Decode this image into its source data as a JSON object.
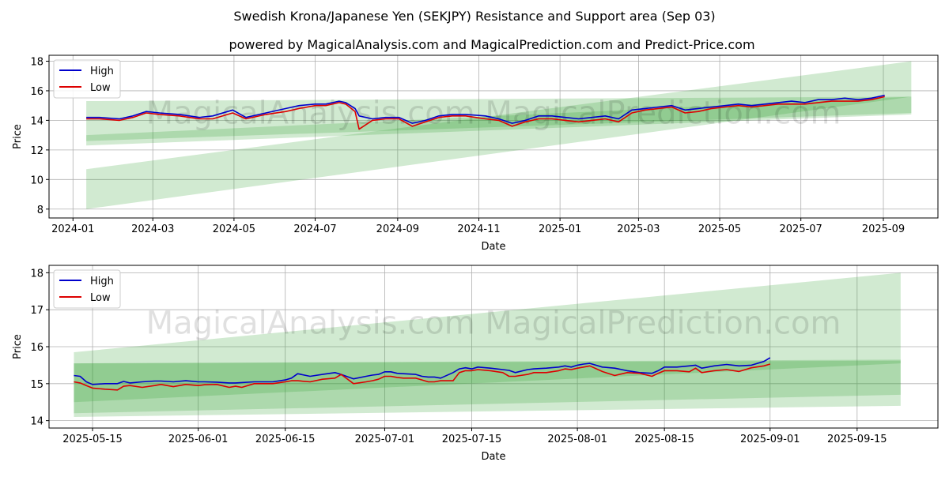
{
  "title": "Swedish Krona/Japanese Yen (SEKJPY) Resistance and Support area (Sep 03)",
  "subtitle": "powered by MagicalAnalysis.com and MagicalPrediction.com and Predict-Price.com",
  "watermark": "MagicalAnalysis.com    MagicalPrediction.com",
  "colors": {
    "high": "#0000cc",
    "low": "#dd0000",
    "band": "#2e9e2e",
    "grid": "#b0b0b0"
  },
  "chart_data": [
    {
      "type": "line",
      "name": "full-history",
      "xlabel": "Date",
      "ylabel": "Price",
      "x_tick_labels": [
        "2024-01",
        "2024-03",
        "2024-05",
        "2024-07",
        "2024-09",
        "2024-11",
        "2025-01",
        "2025-03",
        "2025-05",
        "2025-07",
        "2025-09"
      ],
      "x_tick_days": [
        0,
        60,
        121,
        182,
        244,
        305,
        366,
        425,
        486,
        547,
        609
      ],
      "xlim_days": [
        -18,
        650
      ],
      "ylim": [
        7.4,
        18.4
      ],
      "y_ticks": [
        8,
        10,
        12,
        14,
        16,
        18
      ],
      "legend": [
        "High",
        "Low"
      ],
      "legend_position": "upper-left",
      "series": [
        {
          "name": "High",
          "x_days": [
            10,
            20,
            35,
            45,
            55,
            65,
            80,
            95,
            105,
            120,
            130,
            145,
            160,
            170,
            182,
            190,
            200,
            205,
            212,
            215,
            225,
            235,
            245,
            255,
            265,
            275,
            285,
            295,
            310,
            320,
            330,
            340,
            350,
            360,
            370,
            380,
            390,
            400,
            410,
            420,
            430,
            440,
            450,
            460,
            470,
            480,
            490,
            500,
            510,
            520,
            530,
            540,
            550,
            560,
            570,
            580,
            590,
            600,
            610
          ],
          "values": [
            14.2,
            14.2,
            14.1,
            14.3,
            14.6,
            14.5,
            14.4,
            14.2,
            14.3,
            14.7,
            14.2,
            14.5,
            14.8,
            15.0,
            15.1,
            15.1,
            15.3,
            15.2,
            14.8,
            14.3,
            14.1,
            14.2,
            14.2,
            13.8,
            14.0,
            14.3,
            14.4,
            14.4,
            14.3,
            14.1,
            13.8,
            14.0,
            14.3,
            14.3,
            14.2,
            14.1,
            14.2,
            14.3,
            14.1,
            14.7,
            14.8,
            14.9,
            15.0,
            14.7,
            14.8,
            14.9,
            15.0,
            15.1,
            15.0,
            15.1,
            15.2,
            15.3,
            15.2,
            15.4,
            15.4,
            15.5,
            15.4,
            15.5,
            15.7
          ]
        },
        {
          "name": "Low",
          "x_days": [
            10,
            20,
            35,
            45,
            55,
            65,
            80,
            95,
            105,
            120,
            130,
            145,
            160,
            170,
            182,
            190,
            200,
            205,
            212,
            215,
            225,
            235,
            245,
            255,
            265,
            275,
            285,
            295,
            310,
            320,
            330,
            340,
            350,
            360,
            370,
            380,
            390,
            400,
            410,
            420,
            430,
            440,
            450,
            460,
            470,
            480,
            490,
            500,
            510,
            520,
            530,
            540,
            550,
            560,
            570,
            580,
            590,
            600,
            610
          ],
          "values": [
            14.1,
            14.1,
            14.0,
            14.2,
            14.5,
            14.4,
            14.3,
            14.1,
            14.1,
            14.5,
            14.1,
            14.4,
            14.6,
            14.8,
            15.0,
            15.0,
            15.2,
            15.1,
            14.6,
            13.4,
            14.0,
            14.1,
            14.1,
            13.6,
            13.9,
            14.2,
            14.3,
            14.3,
            14.1,
            14.0,
            13.6,
            13.9,
            14.1,
            14.1,
            14.0,
            13.9,
            14.0,
            14.1,
            13.9,
            14.5,
            14.7,
            14.8,
            14.9,
            14.5,
            14.6,
            14.8,
            14.9,
            15.0,
            14.9,
            15.0,
            15.1,
            15.1,
            15.1,
            15.2,
            15.3,
            15.3,
            15.3,
            15.4,
            15.6
          ]
        }
      ],
      "bands": [
        {
          "x_days": [
            10,
            630
          ],
          "upper": [
            15.3,
            15.6
          ],
          "lower": [
            12.6,
            14.5
          ]
        },
        {
          "x_days": [
            10,
            630
          ],
          "upper": [
            13.0,
            15.6
          ],
          "lower": [
            12.3,
            14.4
          ]
        },
        {
          "x_days": [
            10,
            630
          ],
          "upper": [
            10.7,
            18.0
          ],
          "lower": [
            8.0,
            15.6
          ]
        }
      ]
    },
    {
      "type": "line",
      "name": "recent-zoom",
      "xlabel": "Date",
      "ylabel": "Price",
      "x_tick_labels": [
        "2025-05-15",
        "2025-06-01",
        "2025-06-15",
        "2025-07-01",
        "2025-07-15",
        "2025-08-01",
        "2025-08-15",
        "2025-09-01",
        "2025-09-15"
      ],
      "x_tick_days": [
        0,
        17,
        31,
        47,
        61,
        78,
        92,
        109,
        123
      ],
      "xlim_days": [
        -7,
        136
      ],
      "ylim": [
        13.8,
        18.2
      ],
      "y_ticks": [
        14,
        15,
        16,
        17,
        18
      ],
      "legend": [
        "High",
        "Low"
      ],
      "legend_position": "upper-left",
      "series": [
        {
          "name": "High",
          "x_days": [
            -3,
            -2,
            -1,
            0,
            2,
            4,
            5,
            6,
            8,
            10,
            11,
            13,
            15,
            17,
            18,
            20,
            22,
            23,
            24,
            26,
            28,
            29,
            31,
            32,
            33,
            35,
            37,
            39,
            40,
            42,
            44,
            45,
            46,
            47,
            48,
            49,
            50,
            52,
            53,
            54,
            55,
            56,
            58,
            59,
            60,
            61,
            62,
            64,
            66,
            67,
            68,
            70,
            71,
            73,
            75,
            76,
            77,
            78,
            79,
            80,
            82,
            84,
            86,
            88,
            90,
            91,
            92,
            94,
            96,
            97,
            98,
            100,
            102,
            104,
            106,
            108,
            109
          ],
          "values": [
            15.22,
            15.2,
            15.05,
            14.98,
            15.0,
            15.0,
            15.06,
            15.02,
            15.05,
            15.07,
            15.07,
            15.05,
            15.08,
            15.05,
            15.05,
            15.04,
            15.02,
            15.02,
            15.03,
            15.05,
            15.05,
            15.05,
            15.1,
            15.15,
            15.27,
            15.2,
            15.25,
            15.3,
            15.25,
            15.13,
            15.2,
            15.23,
            15.25,
            15.32,
            15.32,
            15.28,
            15.27,
            15.25,
            15.2,
            15.18,
            15.18,
            15.15,
            15.3,
            15.4,
            15.43,
            15.4,
            15.45,
            15.42,
            15.38,
            15.36,
            15.3,
            15.38,
            15.4,
            15.42,
            15.45,
            15.48,
            15.45,
            15.5,
            15.53,
            15.55,
            15.45,
            15.42,
            15.35,
            15.3,
            15.28,
            15.35,
            15.45,
            15.45,
            15.48,
            15.5,
            15.42,
            15.48,
            15.52,
            15.48,
            15.5,
            15.6,
            15.7
          ]
        },
        {
          "name": "Low",
          "x_days": [
            -3,
            -2,
            -1,
            0,
            2,
            4,
            5,
            6,
            8,
            10,
            11,
            13,
            15,
            17,
            18,
            20,
            22,
            23,
            24,
            26,
            28,
            29,
            31,
            32,
            33,
            35,
            37,
            39,
            40,
            42,
            44,
            45,
            46,
            47,
            48,
            49,
            50,
            52,
            53,
            54,
            55,
            56,
            58,
            59,
            60,
            61,
            62,
            64,
            66,
            67,
            68,
            70,
            71,
            73,
            75,
            76,
            77,
            78,
            79,
            80,
            82,
            84,
            86,
            88,
            90,
            91,
            92,
            94,
            96,
            97,
            98,
            100,
            102,
            104,
            106,
            108,
            109
          ],
          "values": [
            15.05,
            15.02,
            14.95,
            14.88,
            14.85,
            14.83,
            14.93,
            14.95,
            14.9,
            14.95,
            14.98,
            14.92,
            14.98,
            14.95,
            14.97,
            14.98,
            14.9,
            14.93,
            14.9,
            15.0,
            15.0,
            15.0,
            15.05,
            15.08,
            15.08,
            15.05,
            15.12,
            15.15,
            15.25,
            15.0,
            15.05,
            15.08,
            15.12,
            15.2,
            15.2,
            15.17,
            15.15,
            15.15,
            15.1,
            15.05,
            15.05,
            15.08,
            15.08,
            15.3,
            15.35,
            15.35,
            15.38,
            15.35,
            15.3,
            15.2,
            15.2,
            15.25,
            15.3,
            15.3,
            15.35,
            15.4,
            15.38,
            15.42,
            15.45,
            15.48,
            15.33,
            15.22,
            15.3,
            15.28,
            15.2,
            15.28,
            15.35,
            15.35,
            15.32,
            15.42,
            15.3,
            15.35,
            15.38,
            15.33,
            15.43,
            15.48,
            15.53
          ]
        }
      ],
      "bands": [
        {
          "x_days": [
            -3,
            130
          ],
          "upper": [
            15.55,
            15.65
          ],
          "lower": [
            14.5,
            15.55
          ]
        },
        {
          "x_days": [
            -3,
            130
          ],
          "upper": [
            15.55,
            15.62
          ],
          "lower": [
            14.2,
            14.7
          ]
        },
        {
          "x_days": [
            -3,
            130
          ],
          "upper": [
            15.85,
            18.0
          ],
          "lower": [
            14.1,
            14.4
          ]
        }
      ]
    }
  ]
}
